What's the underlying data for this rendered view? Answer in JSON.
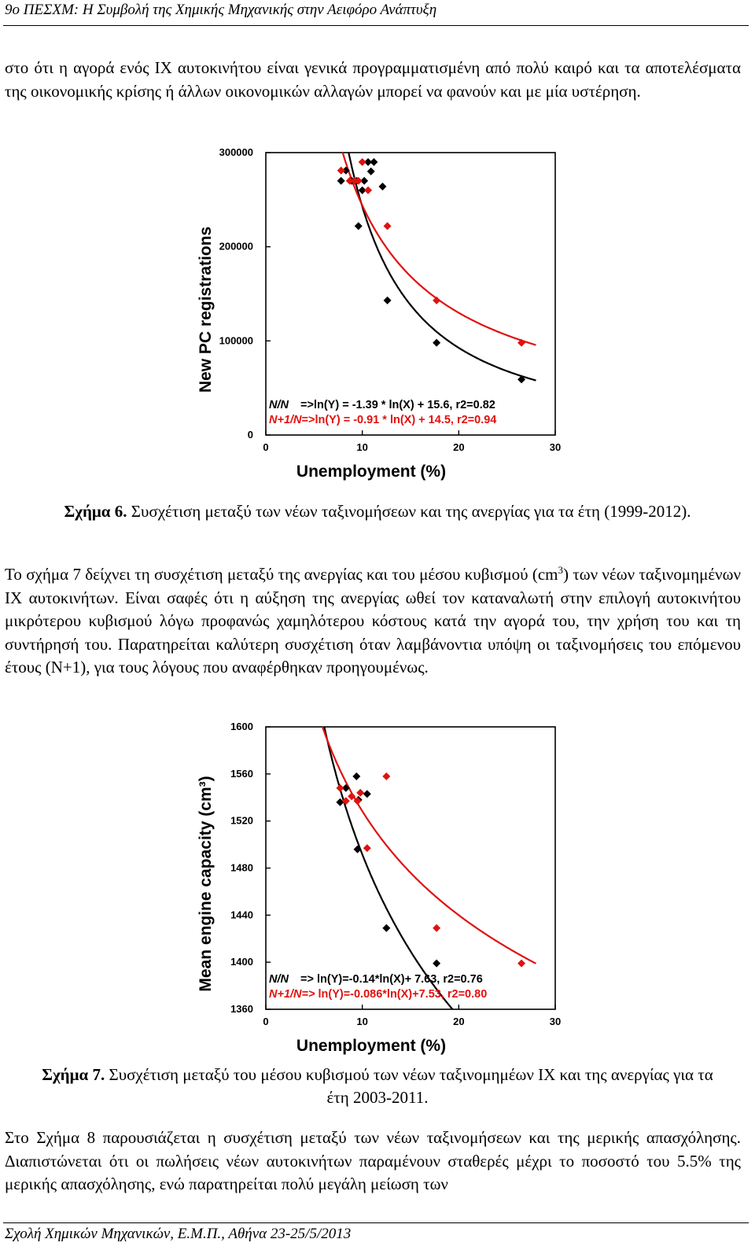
{
  "header": {
    "title": "9ο ΠΕΣΧΜ: Η Συμβολή της Χημικής Μηχανικής στην Αειφόρο Ανάπτυξη"
  },
  "paragraph1": "στο ότι η αγορά ενός ΙΧ αυτοκινήτου είναι γενικά προγραμματισμένη από πολύ καιρό και τα αποτελέσματα της οικονομικής κρίσης ή άλλων οικονομικών αλλαγών μπορεί να φανούν και με μία υστέρηση.",
  "figure6": {
    "label": "Σχήμα 6.",
    "caption": "Συσχέτιση μεταξύ των νέων ταξινομήσεων και της ανεργίας για τα έτη (1999-2012)."
  },
  "paragraph2": {
    "before_sup": "Το σχήμα 7 δείχνει τη συσχέτιση μεταξύ της ανεργίας και του μέσου κυβισμού (cm",
    "sup": "3",
    "after_sup": ") των νέων ταξινομημένων ΙΧ αυτοκινήτων. Είναι σαφές ότι η αύξηση της ανεργίας ωθεί τον καταναλωτή στην επιλογή αυτοκινήτου μικρότερου κυβισμού λόγω προφανώς χαμηλότερου κόστους κατά την αγορά του, την χρήση του και τη συντήρησή του. Παρατηρείται καλύτερη συσχέτιση όταν λαμβάνοντια υπόψη οι ταξινομήσεις του επόμενου έτους (Ν+1), για τους λόγους που αναφέρθηκαν προηγουμένως."
  },
  "figure7": {
    "label": "Σχήμα 7.",
    "caption": "Συσχέτιση μεταξύ του μέσου κυβισμού των νέων ταξινομημέων ΙΧ και της ανεργίας για τα έτη 2003-2011."
  },
  "paragraph3": "Στο Σχήμα 8 παρουσιάζεται η συσχέτιση μεταξύ των νέων ταξινομήσεων και της μερικής απασχόλησης. Διαπιστώνεται ότι οι πωλήσεις νέων αυτοκινήτων παραμένουν σταθερές μέχρι το ποσοστό του 5.5% της μερικής απασχόλησης, ενώ παρατηρείται πολύ μεγάλη μείωση των",
  "footer": {
    "text": "Σχολή Χημικών Μηχανικών, Ε.Μ.Π., Αθήνα 23-25/5/2013"
  },
  "chart_data": [
    {
      "type": "scatter",
      "xlabel": "Unemployment (%)",
      "ylabel": "New PC registrations",
      "xlim": [
        0,
        30
      ],
      "ylim": [
        0,
        300000
      ],
      "xticks": [
        "0",
        "10",
        "20",
        "30"
      ],
      "yticks": [
        "0",
        "100000",
        "200000",
        "300000"
      ],
      "colors": {
        "N": "#000000",
        "N+1": "#e0120f"
      },
      "equations": [
        {
          "label": "N/N",
          "text": "=>ln(Y) = -1.39 * ln(X) + 15.6, r2=0.82",
          "color": "#000000"
        },
        {
          "label": "N+1/N",
          "text": "=>ln(Y) = -0.91 * ln(X) + 14.5, r2=0.94",
          "color": "#e0120f"
        }
      ],
      "series": [
        {
          "x": [
            7.8,
            8.3,
            8.9,
            9.4,
            9.6,
            10.0,
            10.2,
            10.6,
            10.9,
            11.2,
            12.1,
            12.6,
            17.7,
            26.5
          ],
          "y": [
            270000,
            281000,
            270000,
            270000,
            222000,
            260000,
            270000,
            290000,
            280000,
            290000,
            264000,
            143000,
            98000,
            59000
          ],
          "fit": {
            "a": -1.39,
            "b": 15.6
          }
        },
        {
          "x": [
            7.8,
            8.7,
            9.2,
            9.6,
            10.0,
            10.6,
            12.6,
            17.7,
            26.5
          ],
          "y": [
            281000,
            270000,
            270000,
            270000,
            290000,
            260000,
            222000,
            143000,
            98000
          ],
          "fit": {
            "a": -0.91,
            "b": 14.5
          }
        }
      ]
    },
    {
      "type": "scatter",
      "xlabel": "Unemployment (%)",
      "ylabel": "Mean engine capacity (cm³)",
      "xlim": [
        0,
        30
      ],
      "ylim": [
        1360,
        1600
      ],
      "xticks": [
        "0",
        "10",
        "20",
        "30"
      ],
      "yticks": [
        "1360",
        "1400",
        "1440",
        "1480",
        "1520",
        "1560",
        "1600"
      ],
      "colors": {
        "N": "#000000",
        "N+1": "#e0120f"
      },
      "equations": [
        {
          "label": "N/N",
          "text": "=> ln(Y)=-0.14*ln(X)+ 7.63, r2=0.76",
          "color": "#000000"
        },
        {
          "label": "N+1/N=>",
          "text": "ln(Y)=-0.086*ln(X)+7.53, r2=0.80",
          "color": "#e0120f"
        }
      ],
      "series": [
        {
          "x": [
            7.7,
            8.3,
            9.4,
            9.5,
            9.6,
            10.5,
            12.5,
            17.7
          ],
          "y": [
            1536,
            1548,
            1558,
            1496,
            1538,
            1543,
            1429,
            1399
          ],
          "fit": {
            "a": -0.14,
            "b": 7.63
          }
        },
        {
          "x": [
            7.7,
            8.3,
            8.9,
            9.5,
            9.8,
            10.5,
            12.5,
            17.7,
            26.5
          ],
          "y": [
            1548,
            1537,
            1541,
            1537,
            1544,
            1497,
            1558,
            1429,
            1399
          ],
          "fit": {
            "a": -0.086,
            "b": 7.53
          }
        }
      ]
    }
  ]
}
